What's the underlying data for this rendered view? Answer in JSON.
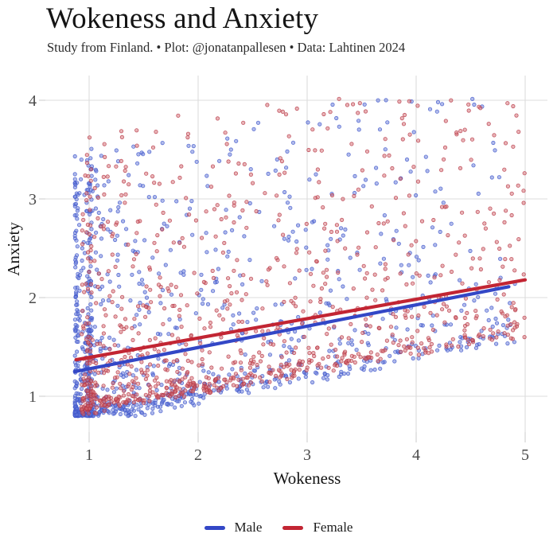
{
  "chart_data": {
    "type": "scatter",
    "title": "Wokeness and Anxiety",
    "subtitle": "Study from Finland. • Plot: @jonatanpallesen • Data: Lahtinen 2024",
    "xlabel": "Wokeness",
    "ylabel": "Anxiety",
    "x_ticks": [
      1,
      2,
      3,
      4,
      5
    ],
    "y_ticks": [
      1,
      2,
      3,
      4
    ],
    "xlim": [
      0.6,
      5.2
    ],
    "ylim": [
      0.64,
      4.26
    ],
    "grid": true,
    "gridline_color": "#dcdcdc",
    "tick_label_color": "#4a4a4a",
    "legend": {
      "position": "bottom",
      "entries": [
        {
          "label": "Male",
          "color": "#3347c6"
        },
        {
          "label": "Female",
          "color": "#c22533"
        }
      ]
    },
    "series": [
      {
        "name": "Male",
        "dot_fill": "#6478d8",
        "dot_edge": "#3d55cb",
        "line_color": "#3347c6",
        "trend": {
          "x1": 0.87,
          "y1": 1.25,
          "x2": 4.85,
          "y2": 2.11
        },
        "n": 1150,
        "points_spec": {
          "seed": 20240117,
          "x_min": 0.87,
          "x_max": 4.92,
          "x_pow": 2.35,
          "x_spike_frac": 0.13,
          "x_spike_at": 1.0,
          "noise_base": -0.52,
          "noise_span": 2.72,
          "noise_pow": 2.9,
          "y_floor": 0.8,
          "y_cap": 4.02
        }
      },
      {
        "name": "Female",
        "dot_fill": "#d46a70",
        "dot_edge": "#b53543",
        "line_color": "#c22533",
        "trend": {
          "x1": 0.88,
          "y1": 1.37,
          "x2": 5.0,
          "y2": 2.18
        },
        "n": 1050,
        "points_spec": {
          "seed": 777001,
          "x_min": 0.93,
          "x_max": 5.0,
          "x_pow": 1.45,
          "x_spike_frac": 0.04,
          "x_spike_at": 1.0,
          "noise_base": -0.52,
          "noise_span": 2.78,
          "noise_pow": 2.9,
          "y_floor": 0.8,
          "y_cap": 4.02
        }
      }
    ]
  }
}
